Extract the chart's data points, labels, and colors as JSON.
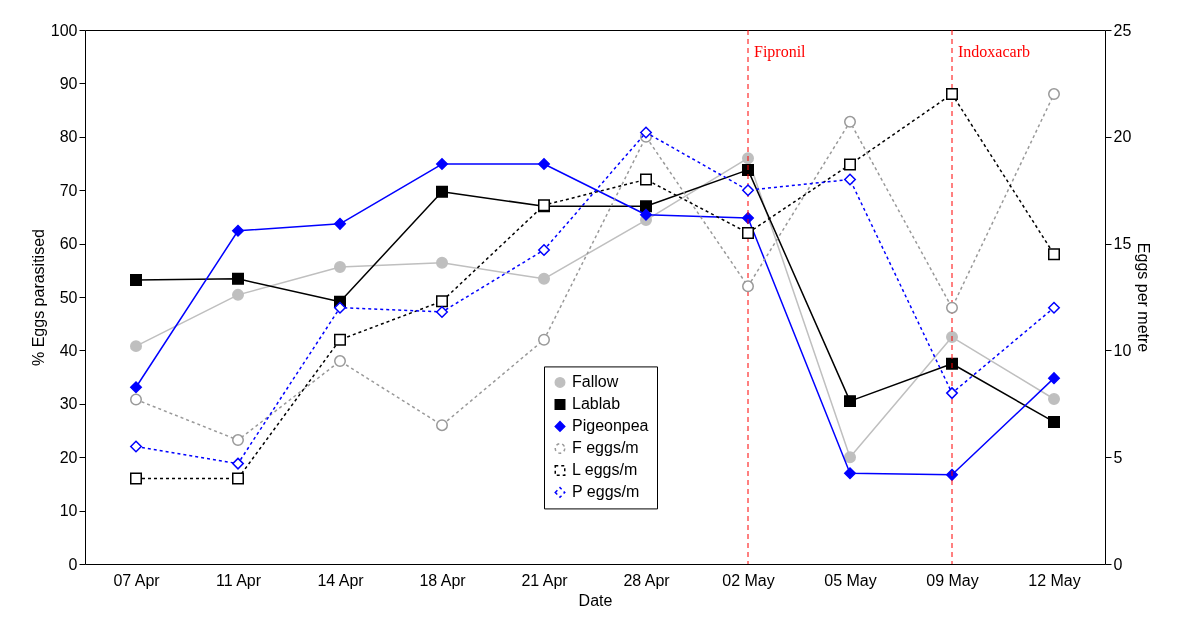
{
  "chart_data": {
    "type": "line",
    "xlabel": "Date",
    "ylabel": "% Eggs parasitised",
    "y2label": "Eggs per metre",
    "categories": [
      "07 Apr",
      "11 Apr",
      "14 Apr",
      "18 Apr",
      "21 Apr",
      "28 Apr",
      "02 May",
      "05 May",
      "09 May",
      "12 May"
    ],
    "series": [
      {
        "name": "Fallow",
        "color": "#bfbfbf",
        "marker": "circle",
        "line_style": "solid",
        "values": [
          40.8,
          50.4,
          55.6,
          56.4,
          53.4,
          64.4,
          76.0,
          20.0,
          42.5,
          30.9
        ]
      },
      {
        "name": "Lablab",
        "color": "#000000",
        "marker": "square",
        "line_style": "solid",
        "values": [
          53.2,
          53.4,
          49.1,
          69.7,
          67.0,
          67.0,
          73.8,
          30.5,
          37.5,
          26.6
        ]
      },
      {
        "name": "Pigeonpea",
        "color": "#0000ff",
        "marker": "diamond",
        "line_style": "solid",
        "values": [
          33.1,
          62.4,
          63.7,
          74.9,
          74.9,
          65.4,
          64.8,
          17.0,
          16.7,
          34.8
        ]
      },
      {
        "name": "F eggs/m",
        "color": "#999999",
        "marker": "circle",
        "line_style": "dotted",
        "axis": "y2",
        "values": [
          7.7,
          5.8,
          9.5,
          6.5,
          10.5,
          20.0,
          13.0,
          20.7,
          12.0,
          22.0
        ]
      },
      {
        "name": "L eggs/m",
        "color": "#000000",
        "marker": "square",
        "line_style": "dotted",
        "axis": "y2",
        "values": [
          4.0,
          4.0,
          10.5,
          12.3,
          16.8,
          18.0,
          15.5,
          18.7,
          22.0,
          14.5
        ]
      },
      {
        "name": "P eggs/m",
        "color": "#0000ff",
        "marker": "diamond",
        "line_style": "dotted",
        "axis": "y2",
        "values": [
          5.5,
          4.7,
          12.0,
          11.8,
          14.7,
          20.2,
          17.5,
          18.0,
          8.0,
          12.0
        ]
      }
    ],
    "ylim": [
      0,
      100
    ],
    "yticks": [
      0,
      10,
      20,
      30,
      40,
      50,
      60,
      70,
      80,
      90,
      100
    ],
    "y2lim": [
      0,
      25
    ],
    "y2ticks": [
      0,
      5,
      10,
      15,
      20,
      25
    ],
    "ref_lines": [
      {
        "axis": "x",
        "value": "02 May",
        "label": "Fipronil",
        "color": "#ff0000",
        "line_style": "dashed"
      },
      {
        "axis": "x",
        "value": "09 May",
        "label": "Indoxacarb",
        "color": "#ff0000",
        "line_style": "dashed"
      }
    ],
    "grid": false,
    "legend": "bottom"
  }
}
